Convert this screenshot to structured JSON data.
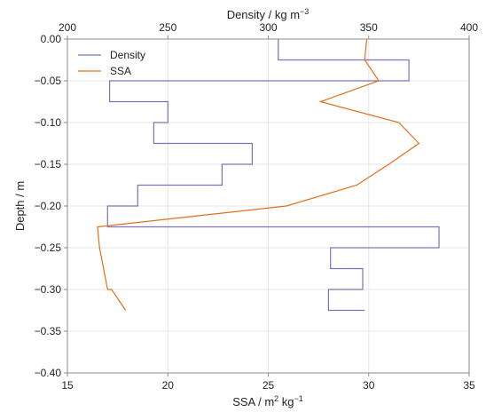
{
  "chart_data": {
    "type": "line",
    "title": "",
    "xlabel_bottom_base": "SSA / m",
    "xlabel_bottom_sup1": "2",
    "xlabel_bottom_mid": " kg",
    "xlabel_bottom_sup2": "−1",
    "xlabel_top_base": "Density / kg m",
    "xlabel_top_sup": "−3",
    "ylabel": "Depth / m",
    "ylim": [
      -0.4,
      0.0
    ],
    "xlim_bottom": [
      15,
      35
    ],
    "xlim_top": [
      200,
      400
    ],
    "yticks": [
      "0.00",
      "−0.05",
      "−0.10",
      "−0.15",
      "−0.20",
      "−0.25",
      "−0.30",
      "−0.35",
      "−0.40"
    ],
    "xticks_bottom": [
      "15",
      "20",
      "25",
      "30",
      "35"
    ],
    "xticks_top": [
      "200",
      "250",
      "300",
      "350",
      "400"
    ],
    "grid": true,
    "legend_position": "top-left",
    "series": [
      {
        "name": "Density",
        "axis": "top",
        "color": "#7a73b8",
        "style": "step",
        "x": [
          305,
          305,
          370,
          370,
          221,
          221,
          250,
          250,
          243,
          243,
          292,
          292,
          277,
          277,
          235,
          235,
          220,
          220,
          385,
          385,
          331,
          331,
          347,
          347,
          330,
          330,
          348
        ],
        "y": [
          0.0,
          -0.025,
          -0.025,
          -0.05,
          -0.05,
          -0.075,
          -0.075,
          -0.1,
          -0.1,
          -0.125,
          -0.125,
          -0.15,
          -0.15,
          -0.175,
          -0.175,
          -0.2,
          -0.2,
          -0.225,
          -0.225,
          -0.25,
          -0.25,
          -0.275,
          -0.275,
          -0.3,
          -0.3,
          -0.325,
          -0.325
        ]
      },
      {
        "name": "SSA",
        "axis": "bottom",
        "color": "#e0701c",
        "style": "line",
        "x": [
          29.9,
          29.8,
          30.5,
          27.6,
          31.5,
          32.5,
          31.0,
          29.4,
          25.9,
          16.5,
          16.6,
          16.8,
          17.0,
          17.2,
          17.9
        ],
        "y": [
          0.0,
          -0.025,
          -0.05,
          -0.075,
          -0.1,
          -0.125,
          -0.15,
          -0.175,
          -0.2,
          -0.225,
          -0.25,
          -0.275,
          -0.3,
          -0.3,
          -0.325
        ]
      }
    ]
  }
}
